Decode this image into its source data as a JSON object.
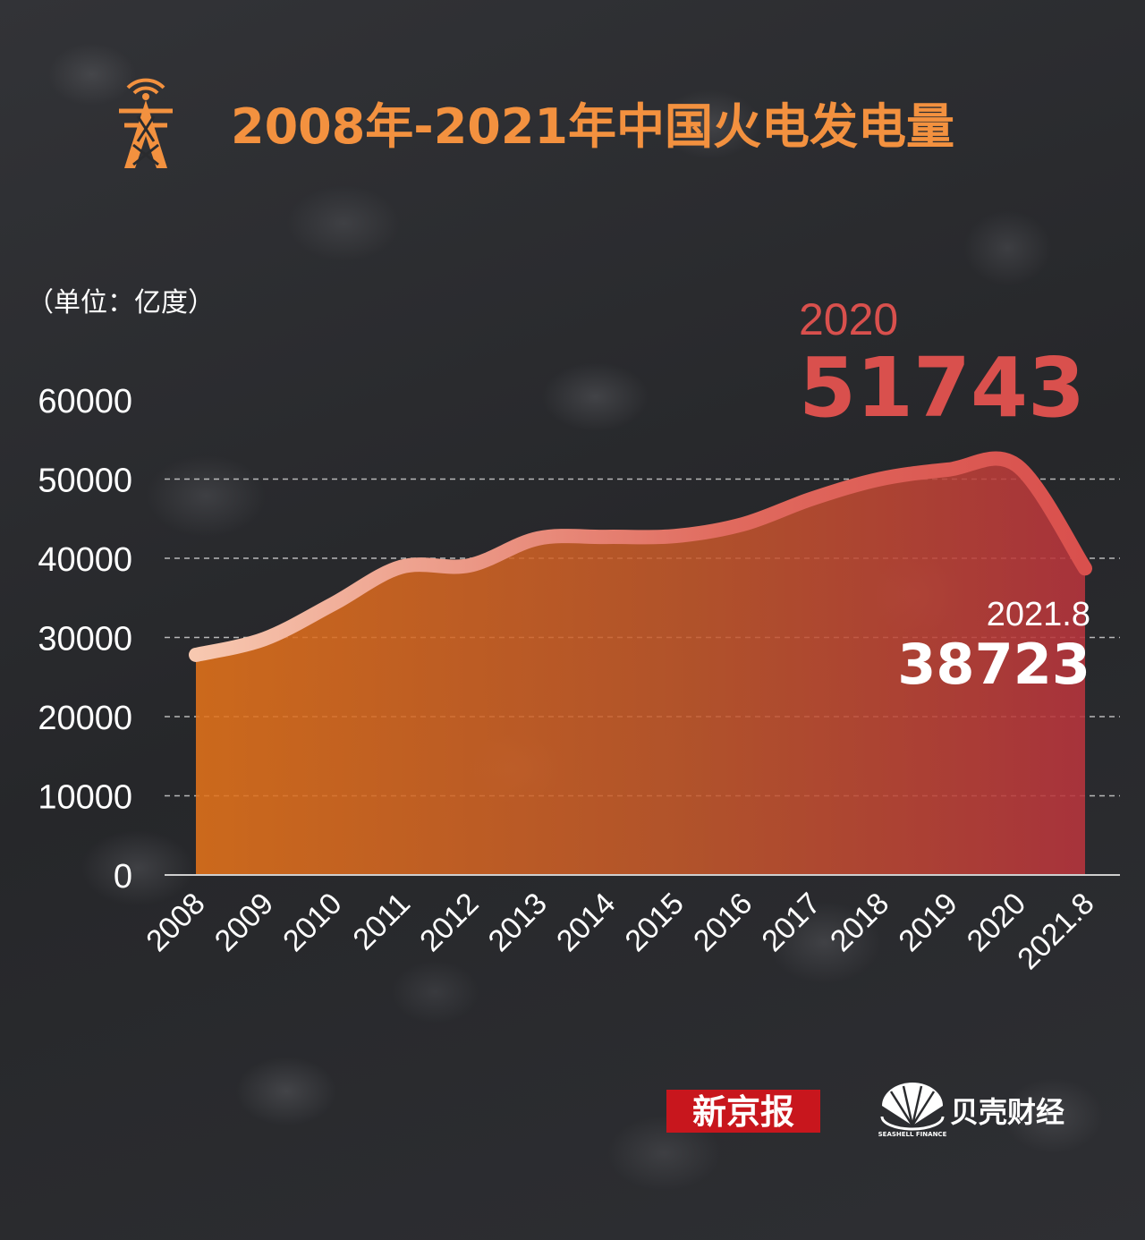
{
  "title": "2008年-2021年中国火电发电量",
  "unit_label": "（单位：亿度）",
  "chart_data": {
    "type": "area",
    "title": "2008年-2021年中国火电发电量",
    "ylabel": "（单位：亿度）",
    "xlabel": "",
    "categories": [
      "2008",
      "2009",
      "2010",
      "2011",
      "2012",
      "2013",
      "2014",
      "2015",
      "2016",
      "2017",
      "2018",
      "2019",
      "2020",
      "2021.8"
    ],
    "values": [
      27800,
      29800,
      34200,
      38900,
      39100,
      42500,
      42700,
      42800,
      44300,
      47500,
      50000,
      51200,
      51743,
      38723
    ],
    "ylim": [
      0,
      60000
    ],
    "yticks": [
      "0",
      "10000",
      "20000",
      "30000",
      "40000",
      "50000",
      "60000"
    ],
    "grid": true,
    "annotations": {
      "peak": {
        "year": "2020",
        "value": "51743"
      },
      "latest": {
        "year": "2021.8",
        "value": "38723"
      }
    },
    "colors": {
      "line_start": "#f5c1a6",
      "line_end": "#d9504d",
      "fill_start": "#e2721a",
      "fill_end": "#b8343d",
      "title": "#f3913f"
    }
  },
  "logos": {
    "bjnews": "新京报",
    "beike": "贝壳财经",
    "beike_sub": "SEASHELL FINANCE"
  },
  "icons": {
    "title_icon": "transmission-tower-icon",
    "beike_icon": "seashell-icon"
  }
}
